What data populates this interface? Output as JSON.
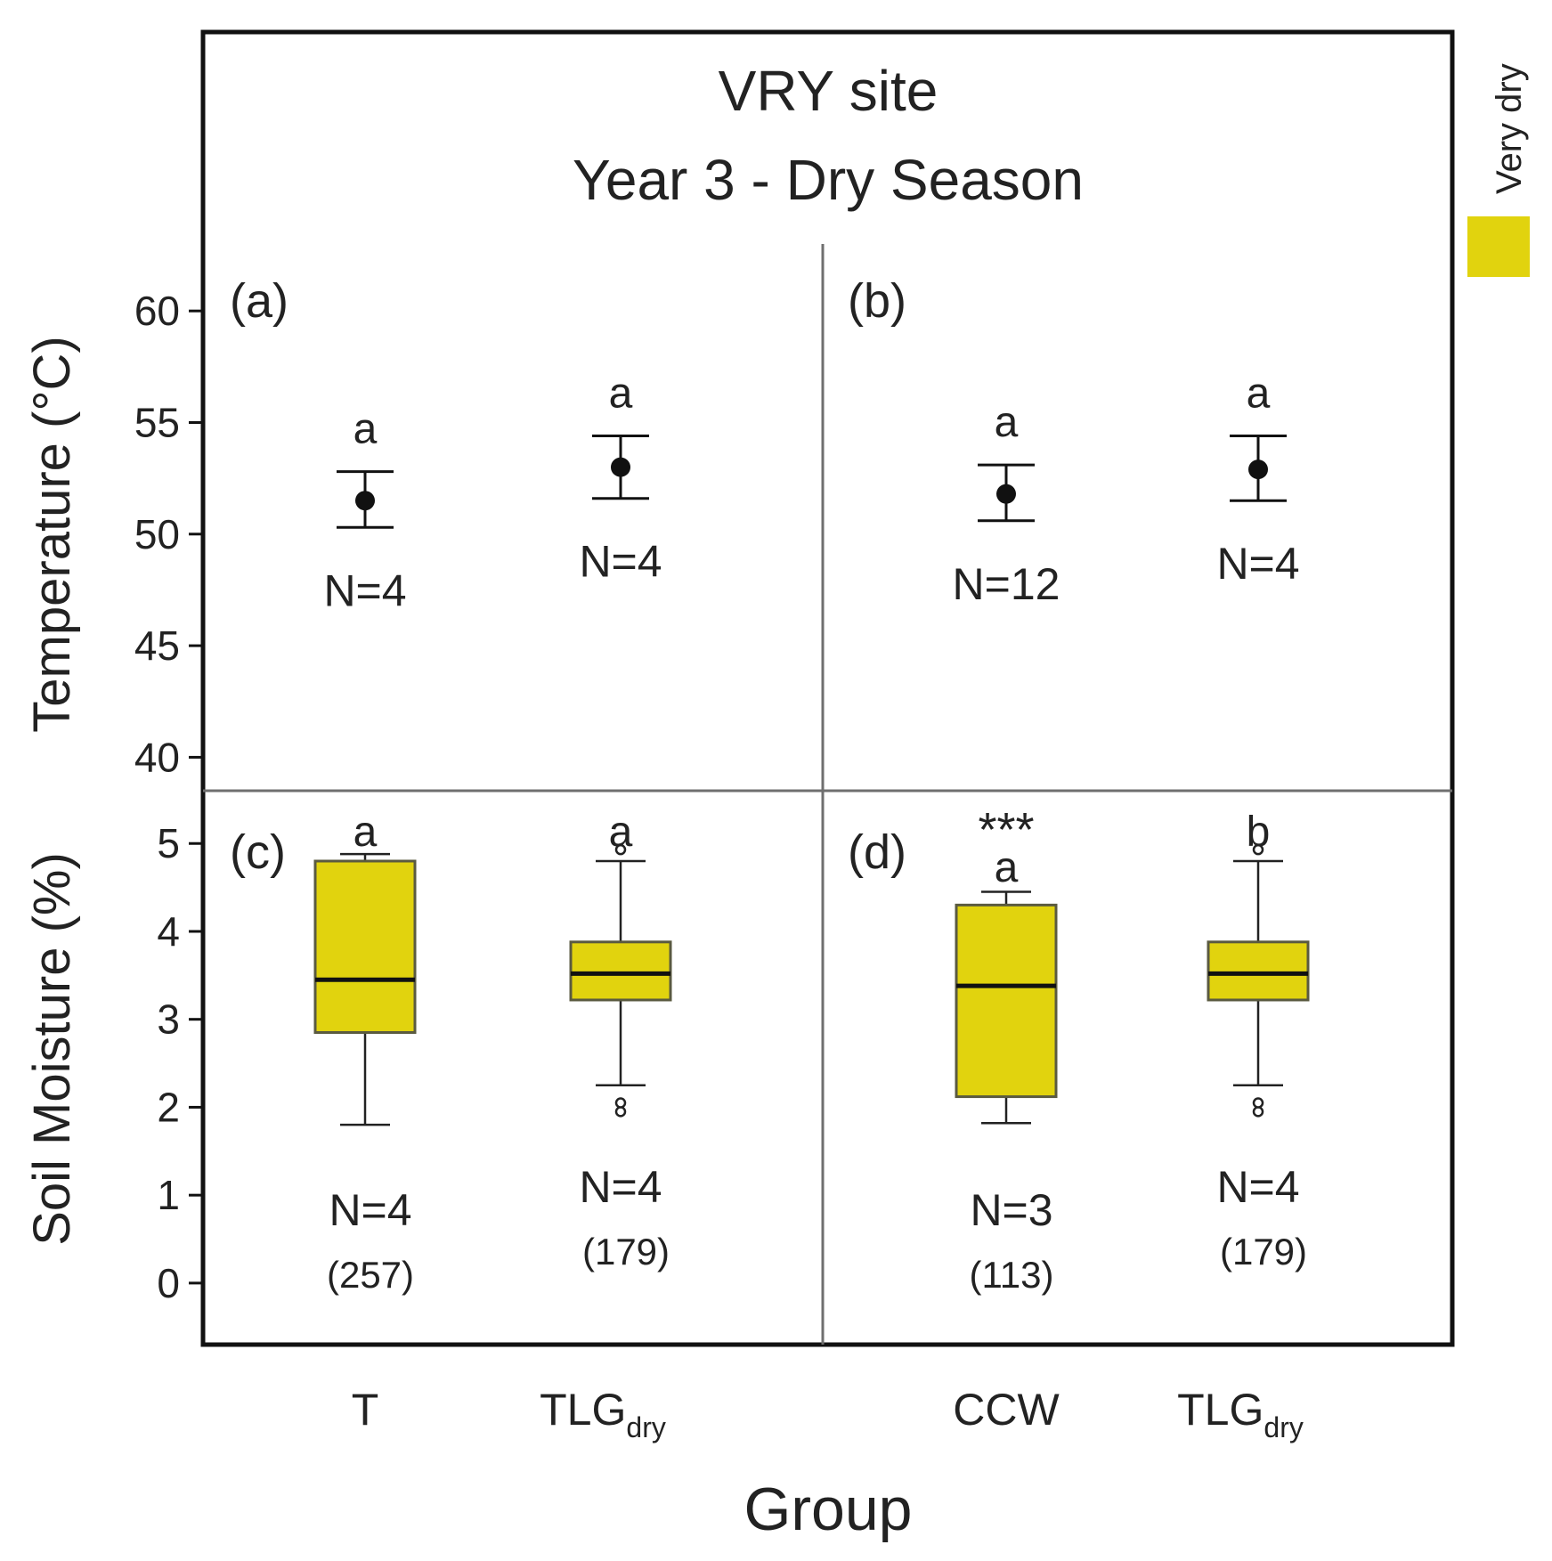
{
  "title_line1": "VRY site",
  "title_line2": "Year 3 - Dry Season",
  "legend_label": "Very dry",
  "colors": {
    "box_fill": "#e1d30e",
    "box_stroke": "#5a5a40",
    "frame": "#111111",
    "divider": "#6f6f6f",
    "text": "#222222"
  },
  "chart_data": {
    "type": "mixed-panel",
    "xlabel": "Group",
    "groups": [
      {
        "label": "T",
        "sub": ""
      },
      {
        "label": "TLG",
        "sub": "dry"
      },
      {
        "label": "CCW",
        "sub": ""
      },
      {
        "label": "TLG",
        "sub": "dry"
      }
    ],
    "temperature": {
      "ylabel": "Temperature (°C)",
      "ylim": [
        38.5,
        63
      ],
      "ticks": [
        40,
        45,
        50,
        55,
        60
      ],
      "panels": [
        {
          "id": "(a)",
          "points": [
            {
              "group": 0,
              "mean": 51.5,
              "lo": 50.3,
              "hi": 52.8,
              "letter": "a",
              "n": "N=4"
            },
            {
              "group": 1,
              "mean": 53.0,
              "lo": 51.6,
              "hi": 54.4,
              "letter": "a",
              "n": "N=4"
            }
          ]
        },
        {
          "id": "(b)",
          "points": [
            {
              "group": 2,
              "mean": 51.8,
              "lo": 50.6,
              "hi": 53.1,
              "letter": "a",
              "n": "N=12"
            },
            {
              "group": 3,
              "mean": 52.9,
              "lo": 51.5,
              "hi": 54.4,
              "letter": "a",
              "n": "N=4"
            }
          ]
        }
      ]
    },
    "soil_moisture": {
      "ylabel": "Soil Moisture (%)",
      "ylim": [
        -0.7,
        5.6
      ],
      "ticks": [
        0,
        1,
        2,
        3,
        4,
        5
      ],
      "panels": [
        {
          "id": "(c)",
          "boxes": [
            {
              "group": 0,
              "wlo": 1.8,
              "q1": 2.85,
              "median": 3.45,
              "q3": 4.8,
              "whi": 4.88,
              "outliers": [],
              "letter": "a",
              "stars": "",
              "n": "N=4",
              "count": "(257)"
            },
            {
              "group": 1,
              "wlo": 2.25,
              "q1": 3.22,
              "median": 3.52,
              "q3": 3.88,
              "whi": 4.8,
              "outliers": [
                1.95,
                2.05,
                4.93
              ],
              "letter": "a",
              "stars": "",
              "n": "N=4",
              "count": "(179)"
            }
          ]
        },
        {
          "id": "(d)",
          "boxes": [
            {
              "group": 2,
              "wlo": 1.82,
              "q1": 2.12,
              "median": 3.38,
              "q3": 4.3,
              "whi": 4.45,
              "outliers": [],
              "letter": "a",
              "stars": "***",
              "n": "N=3",
              "count": "(113)"
            },
            {
              "group": 3,
              "wlo": 2.25,
              "q1": 3.22,
              "median": 3.52,
              "q3": 3.88,
              "whi": 4.8,
              "outliers": [
                1.95,
                2.05,
                4.93
              ],
              "letter": "b",
              "stars": "",
              "n": "N=4",
              "count": "(179)"
            }
          ]
        }
      ]
    }
  }
}
